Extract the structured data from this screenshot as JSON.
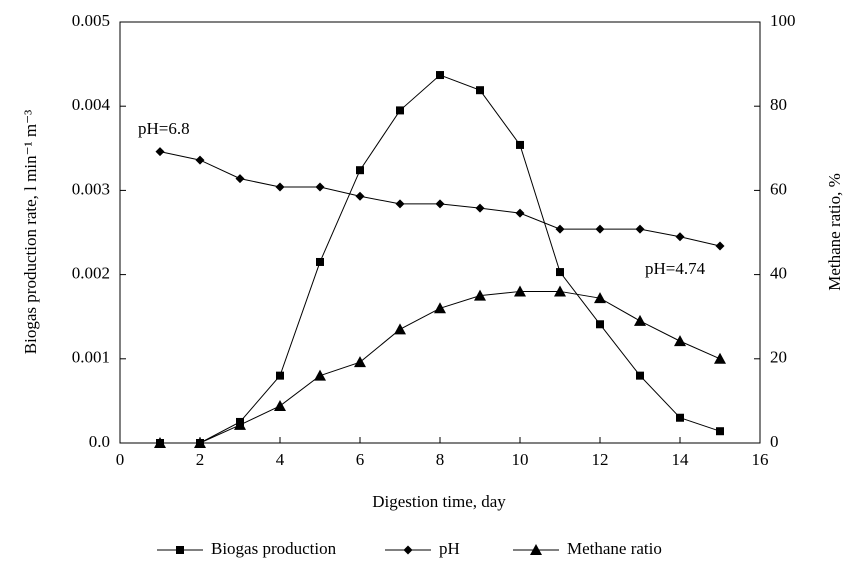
{
  "chart_data": {
    "type": "line",
    "xlabel": "Digestion time, day",
    "ylabel": "Biogas production rate, l min⁻¹ m⁻³",
    "y2label": "Methane ratio, %",
    "x": [
      1,
      2,
      3,
      4,
      5,
      6,
      7,
      8,
      9,
      10,
      11,
      12,
      13,
      14,
      15
    ],
    "series": [
      {
        "name": "Biogas production",
        "color": "#000000",
        "marker": "square",
        "axis": "y",
        "values": [
          0,
          0,
          0.00025,
          0.0008,
          0.00215,
          0.00324,
          0.00395,
          0.00437,
          0.00419,
          0.00354,
          0.00203,
          0.00141,
          0.0008,
          0.0003,
          0.00014
        ]
      },
      {
        "name": "pH",
        "color": "#000000",
        "marker": "diamond",
        "axis": "y",
        "values": [
          0.00346,
          0.00336,
          0.00314,
          0.00304,
          0.00304,
          0.00293,
          0.00284,
          0.00284,
          0.00279,
          0.00273,
          0.00254,
          0.00254,
          0.00254,
          0.00245,
          0.00234
        ]
      },
      {
        "name": "Methane ratio",
        "color": "#000000",
        "marker": "triangle",
        "axis": "y2",
        "values": [
          0,
          0,
          4.3,
          8.8,
          16,
          19.2,
          27,
          32,
          35,
          36,
          36,
          34.4,
          29,
          24.2,
          20
        ]
      }
    ],
    "annotations": [
      "pH=6.8",
      "pH=4.74"
    ],
    "xlim": [
      0,
      16
    ],
    "xticks": [
      0,
      2,
      4,
      6,
      8,
      10,
      12,
      14,
      16
    ],
    "ylim": [
      0,
      0.005
    ],
    "yticks": [
      {
        "value": 0,
        "label": "0.0"
      },
      0.001,
      0.002,
      0.003,
      0.004,
      0.005
    ],
    "y2lim": [
      0,
      100
    ],
    "y2ticks": [
      0,
      20,
      40,
      60,
      80,
      100
    ],
    "grid": false,
    "legend": "bottom"
  }
}
